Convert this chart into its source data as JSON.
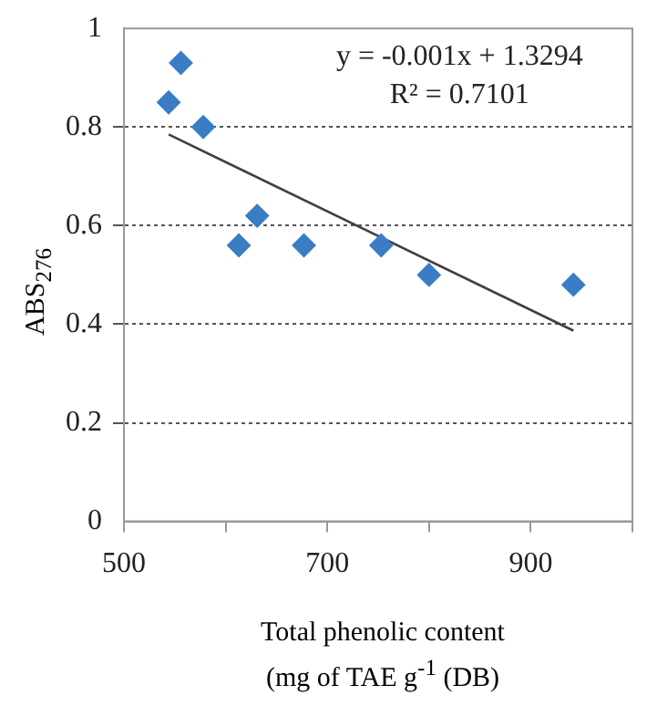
{
  "chart_data": {
    "type": "scatter",
    "xlabel": "Total phenolic content\n(mg of TAE g$^{-1}$ (DB)",
    "ylabel": "ABS$_{276}$",
    "annotations": [
      "y = -0.001x + 1.3294",
      "R² = 0.7101"
    ],
    "series": [
      {
        "marker": "diamond",
        "color": "#3a7dc4",
        "x": [
          544,
          556,
          578,
          613,
          631,
          677,
          753,
          800,
          942
        ],
        "values": [
          0.85,
          0.93,
          0.8,
          0.56,
          0.62,
          0.56,
          0.56,
          0.5,
          0.48
        ]
      },
      {
        "type": "line",
        "marker": "none",
        "color": "#404040",
        "x": [
          544,
          942
        ],
        "values": [
          0.785,
          0.387
        ]
      }
    ],
    "xlim": [
      500,
      1000
    ],
    "xticks": [
      500,
      {
        "value": 600,
        "label": null
      },
      700,
      {
        "value": 800,
        "label": null
      },
      900,
      {
        "value": 1000,
        "label": null
      }
    ],
    "ylim": [
      0,
      1
    ],
    "yticks": [
      0,
      0.2,
      0.4,
      0.6,
      0.8,
      1
    ],
    "grid": "y",
    "legend": false
  }
}
